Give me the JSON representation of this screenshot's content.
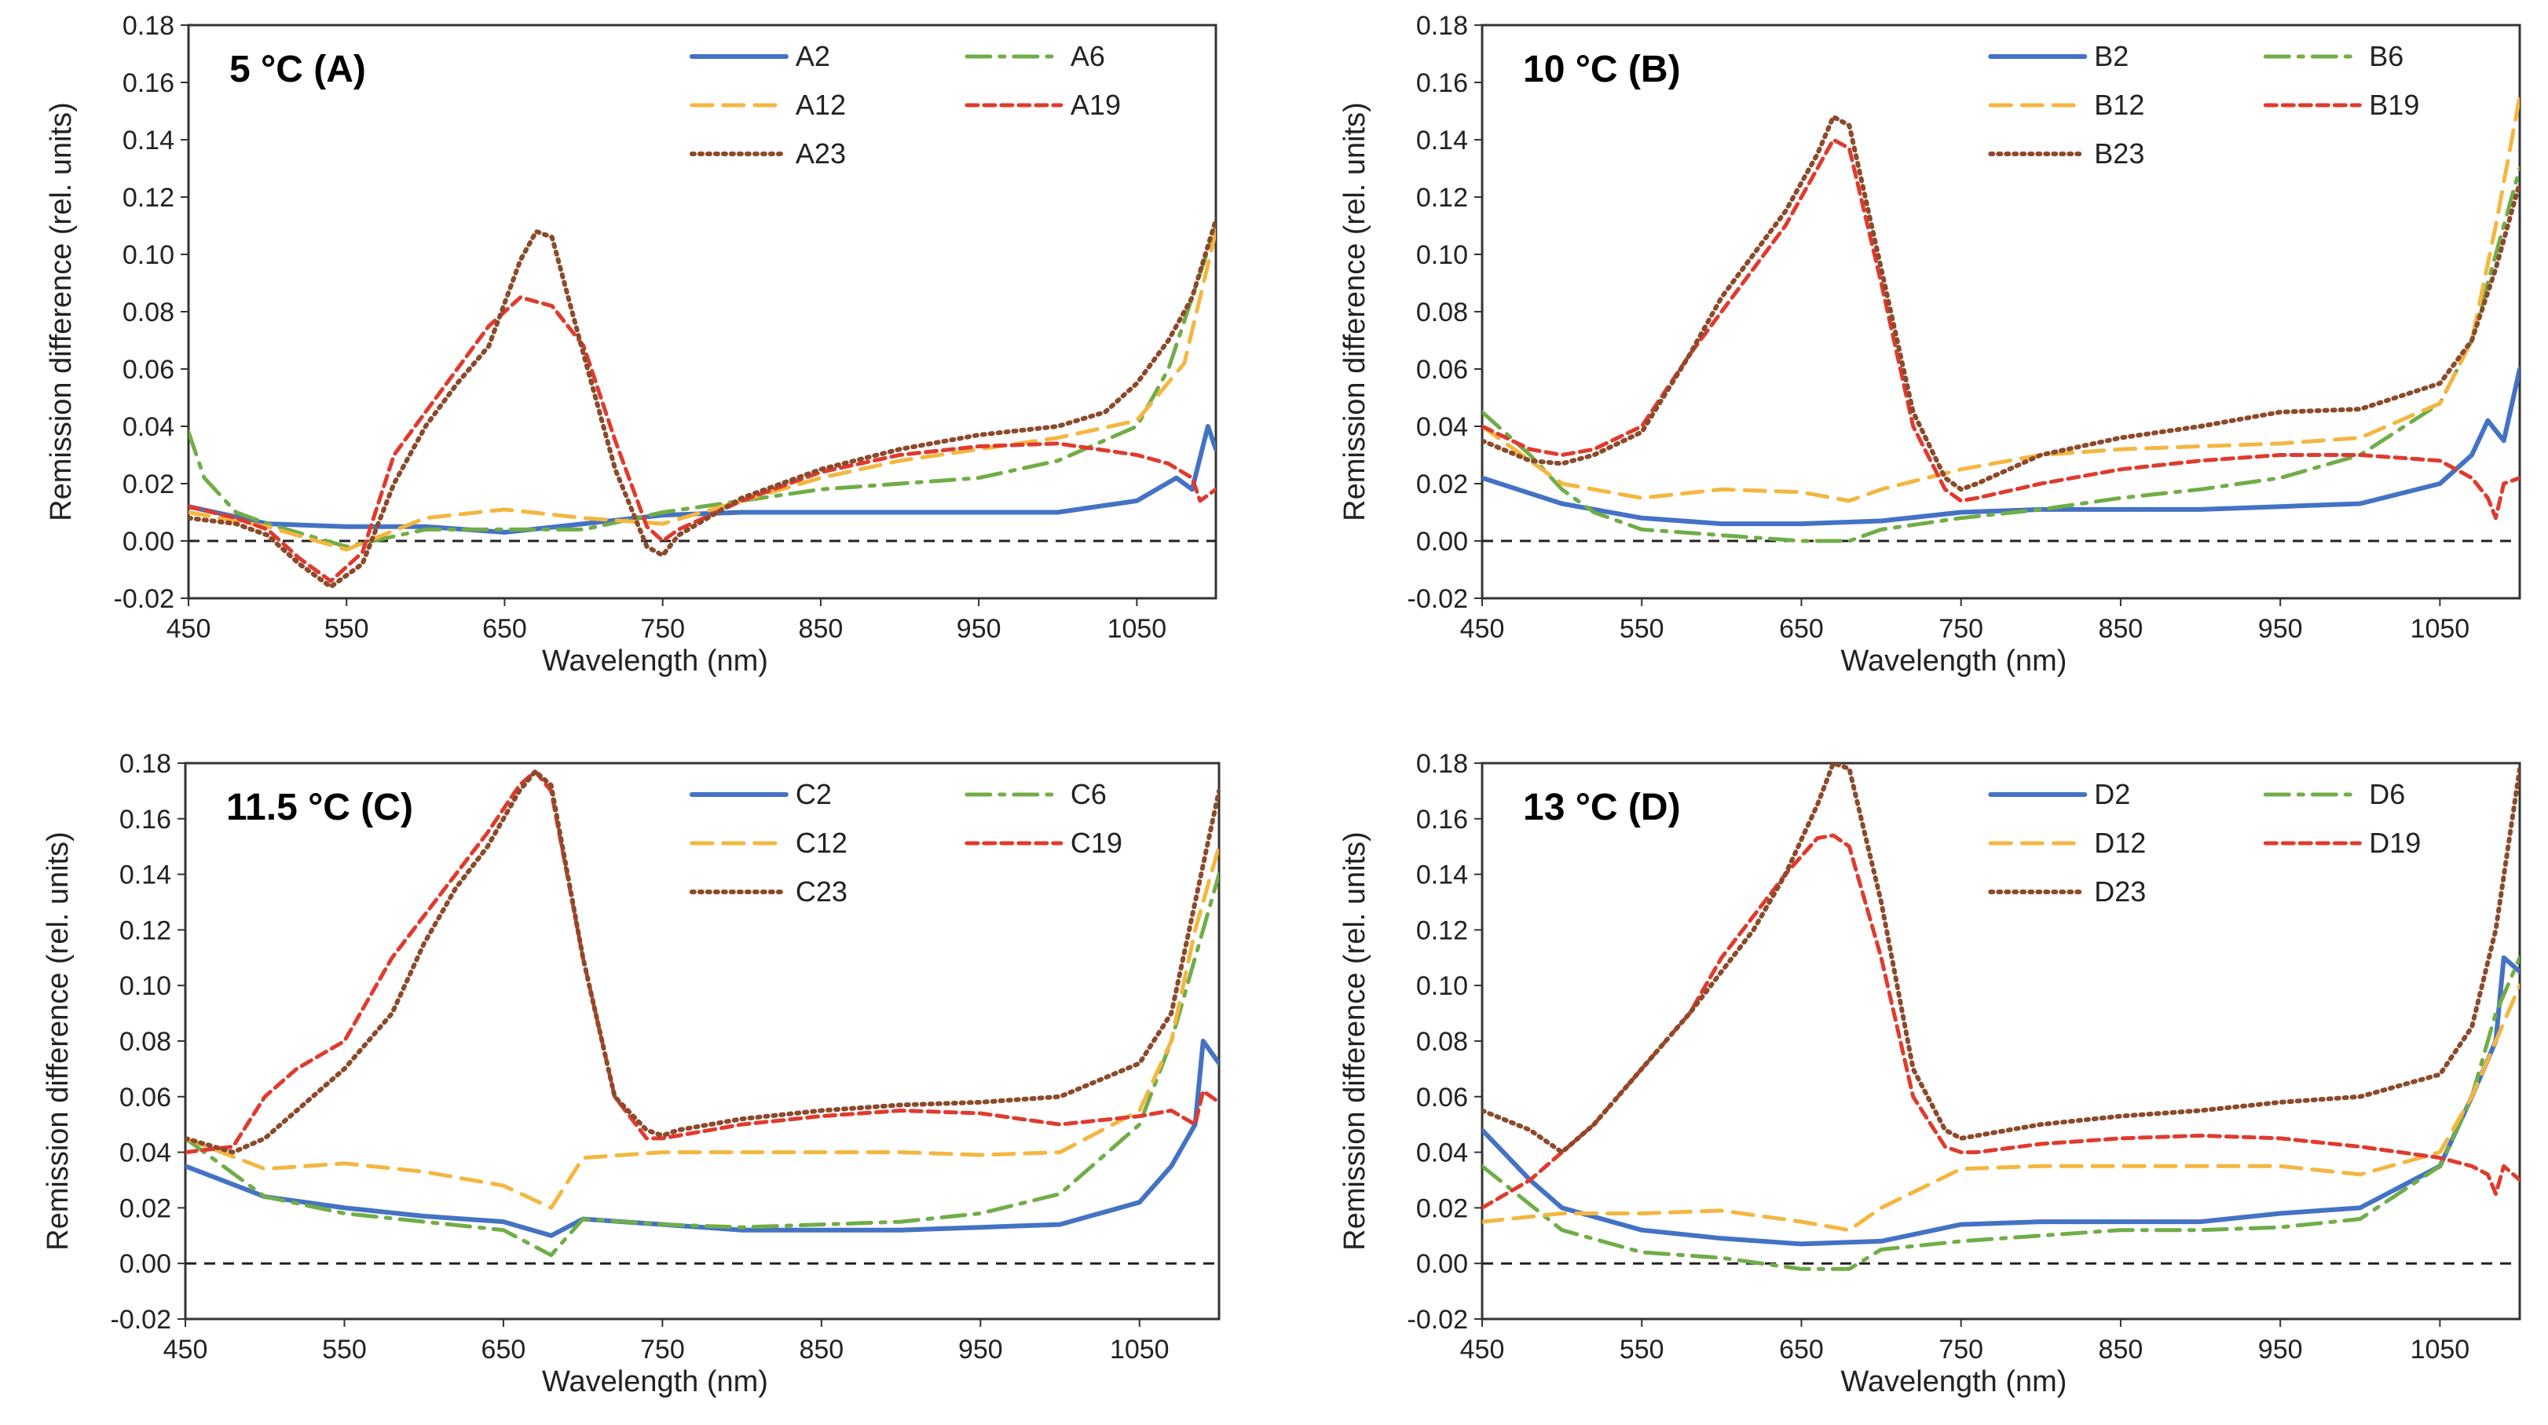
{
  "figure": {
    "description_free": true
  },
  "chart_data": [
    {
      "type": "line",
      "title": "5 °C (A)",
      "xlabel": "Wavelength  (nm)",
      "ylabel": "Remission difference (rel. units)",
      "xlim": [
        450,
        1100
      ],
      "ylim": [
        -0.02,
        0.18
      ],
      "xticks": [
        "450",
        "550",
        "650",
        "750",
        "850",
        "950",
        "1050"
      ],
      "yticks": [
        "-0.02",
        "0.00",
        "0.02",
        "0.04",
        "0.06",
        "0.08",
        "0.10",
        "0.12",
        "0.14",
        "0.16",
        "0.18"
      ],
      "series": [
        {
          "name": "A2",
          "x": [
            450,
            500,
            550,
            600,
            650,
            700,
            750,
            800,
            850,
            900,
            950,
            1000,
            1050,
            1075,
            1085,
            1095,
            1100
          ],
          "y": [
            0.012,
            0.006,
            0.005,
            0.005,
            0.003,
            0.006,
            0.009,
            0.01,
            0.01,
            0.01,
            0.01,
            0.01,
            0.014,
            0.022,
            0.018,
            0.04,
            0.032
          ]
        },
        {
          "name": "A6",
          "x": [
            450,
            460,
            480,
            500,
            550,
            600,
            650,
            700,
            750,
            800,
            850,
            900,
            950,
            1000,
            1050,
            1070,
            1085,
            1100
          ],
          "y": [
            0.038,
            0.022,
            0.01,
            0.006,
            -0.002,
            0.004,
            0.004,
            0.004,
            0.01,
            0.014,
            0.018,
            0.02,
            0.022,
            0.028,
            0.04,
            0.06,
            0.085,
            0.11
          ]
        },
        {
          "name": "A12",
          "x": [
            450,
            500,
            550,
            600,
            650,
            700,
            750,
            800,
            850,
            900,
            950,
            1000,
            1050,
            1080,
            1100
          ],
          "y": [
            0.01,
            0.005,
            -0.003,
            0.008,
            0.011,
            0.008,
            0.006,
            0.014,
            0.022,
            0.028,
            0.032,
            0.036,
            0.042,
            0.062,
            0.108
          ]
        },
        {
          "name": "A19",
          "x": [
            450,
            480,
            500,
            520,
            540,
            560,
            580,
            600,
            620,
            640,
            660,
            680,
            700,
            720,
            740,
            750,
            760,
            800,
            850,
            900,
            950,
            1000,
            1050,
            1070,
            1085,
            1090,
            1100
          ],
          "y": [
            0.012,
            0.008,
            0.004,
            -0.006,
            -0.014,
            -0.004,
            0.03,
            0.045,
            0.06,
            0.075,
            0.085,
            0.082,
            0.068,
            0.035,
            0.005,
            0.0,
            0.004,
            0.014,
            0.024,
            0.03,
            0.033,
            0.034,
            0.03,
            0.027,
            0.022,
            0.014,
            0.018
          ]
        },
        {
          "name": "A23",
          "x": [
            450,
            480,
            500,
            520,
            540,
            560,
            580,
            600,
            620,
            640,
            660,
            670,
            680,
            700,
            720,
            740,
            750,
            760,
            800,
            850,
            900,
            950,
            1000,
            1030,
            1050,
            1070,
            1085,
            1100
          ],
          "y": [
            0.008,
            0.006,
            0.002,
            -0.008,
            -0.016,
            -0.008,
            0.02,
            0.04,
            0.055,
            0.068,
            0.098,
            0.108,
            0.106,
            0.065,
            0.025,
            -0.002,
            -0.005,
            0.002,
            0.015,
            0.025,
            0.032,
            0.037,
            0.04,
            0.045,
            0.055,
            0.07,
            0.085,
            0.112
          ]
        }
      ]
    },
    {
      "type": "line",
      "title": "10 °C (B)",
      "xlabel": "Wavelength  (nm)",
      "ylabel": "Remission difference (rel. units)",
      "xlim": [
        450,
        1100
      ],
      "ylim": [
        -0.02,
        0.18
      ],
      "xticks": [
        "450",
        "550",
        "650",
        "750",
        "850",
        "950",
        "1050"
      ],
      "yticks": [
        "-0.02",
        "0.00",
        "0.02",
        "0.04",
        "0.06",
        "0.08",
        "0.10",
        "0.12",
        "0.14",
        "0.16",
        "0.18"
      ],
      "series": [
        {
          "name": "B2",
          "x": [
            450,
            500,
            550,
            600,
            650,
            700,
            750,
            800,
            850,
            900,
            950,
            1000,
            1050,
            1070,
            1080,
            1090,
            1100
          ],
          "y": [
            0.022,
            0.013,
            0.008,
            0.006,
            0.006,
            0.007,
            0.01,
            0.011,
            0.011,
            0.011,
            0.012,
            0.013,
            0.02,
            0.03,
            0.042,
            0.035,
            0.06
          ]
        },
        {
          "name": "B6",
          "x": [
            450,
            480,
            500,
            520,
            550,
            600,
            650,
            680,
            700,
            750,
            800,
            850,
            900,
            950,
            1000,
            1050,
            1070,
            1085,
            1100
          ],
          "y": [
            0.045,
            0.03,
            0.018,
            0.01,
            0.004,
            0.002,
            0.0,
            0.0,
            0.004,
            0.008,
            0.011,
            0.015,
            0.018,
            0.022,
            0.03,
            0.048,
            0.07,
            0.1,
            0.13
          ]
        },
        {
          "name": "B12",
          "x": [
            450,
            500,
            550,
            600,
            650,
            680,
            700,
            750,
            800,
            850,
            900,
            950,
            1000,
            1050,
            1070,
            1085,
            1100
          ],
          "y": [
            0.04,
            0.02,
            0.015,
            0.018,
            0.017,
            0.014,
            0.018,
            0.025,
            0.03,
            0.032,
            0.033,
            0.034,
            0.036,
            0.048,
            0.07,
            0.11,
            0.155
          ]
        },
        {
          "name": "B19",
          "x": [
            450,
            480,
            500,
            520,
            550,
            580,
            600,
            620,
            640,
            660,
            670,
            680,
            700,
            720,
            740,
            750,
            760,
            800,
            850,
            900,
            950,
            1000,
            1050,
            1070,
            1080,
            1085,
            1090,
            1100
          ],
          "y": [
            0.04,
            0.032,
            0.03,
            0.032,
            0.04,
            0.065,
            0.08,
            0.095,
            0.11,
            0.13,
            0.14,
            0.137,
            0.09,
            0.04,
            0.018,
            0.014,
            0.015,
            0.02,
            0.025,
            0.028,
            0.03,
            0.03,
            0.028,
            0.022,
            0.015,
            0.008,
            0.02,
            0.022
          ]
        },
        {
          "name": "B23",
          "x": [
            450,
            480,
            500,
            520,
            550,
            580,
            600,
            620,
            640,
            660,
            670,
            680,
            700,
            720,
            740,
            750,
            760,
            800,
            850,
            900,
            950,
            1000,
            1050,
            1070,
            1085,
            1100
          ],
          "y": [
            0.035,
            0.028,
            0.027,
            0.03,
            0.038,
            0.065,
            0.085,
            0.1,
            0.115,
            0.135,
            0.148,
            0.145,
            0.095,
            0.045,
            0.022,
            0.018,
            0.02,
            0.03,
            0.036,
            0.04,
            0.045,
            0.046,
            0.055,
            0.07,
            0.095,
            0.125
          ]
        }
      ]
    },
    {
      "type": "line",
      "title": "11.5 °C (C)",
      "xlabel": "Wavelength  (nm)",
      "ylabel": "Remission difference (rel. units)",
      "xlim": [
        450,
        1100
      ],
      "ylim": [
        -0.02,
        0.18
      ],
      "xticks": [
        "450",
        "550",
        "650",
        "750",
        "850",
        "950",
        "1050"
      ],
      "yticks": [
        "-0.02",
        "0.00",
        "0.02",
        "0.04",
        "0.06",
        "0.08",
        "0.10",
        "0.12",
        "0.14",
        "0.16",
        "0.18"
      ],
      "series": [
        {
          "name": "C2",
          "x": [
            450,
            500,
            550,
            600,
            650,
            680,
            700,
            750,
            800,
            850,
            900,
            950,
            1000,
            1050,
            1070,
            1085,
            1090,
            1100
          ],
          "y": [
            0.035,
            0.024,
            0.02,
            0.017,
            0.015,
            0.01,
            0.016,
            0.014,
            0.012,
            0.012,
            0.012,
            0.013,
            0.014,
            0.022,
            0.035,
            0.05,
            0.08,
            0.072
          ]
        },
        {
          "name": "C6",
          "x": [
            450,
            500,
            550,
            600,
            650,
            670,
            680,
            700,
            750,
            800,
            850,
            900,
            950,
            1000,
            1050,
            1070,
            1085,
            1100
          ],
          "y": [
            0.045,
            0.024,
            0.018,
            0.015,
            0.012,
            0.006,
            0.003,
            0.016,
            0.014,
            0.013,
            0.014,
            0.015,
            0.018,
            0.025,
            0.05,
            0.08,
            0.11,
            0.14
          ]
        },
        {
          "name": "C12",
          "x": [
            450,
            500,
            550,
            600,
            650,
            680,
            700,
            750,
            800,
            850,
            900,
            950,
            1000,
            1050,
            1070,
            1085,
            1100
          ],
          "y": [
            0.045,
            0.034,
            0.036,
            0.033,
            0.028,
            0.02,
            0.038,
            0.04,
            0.04,
            0.04,
            0.04,
            0.039,
            0.04,
            0.055,
            0.08,
            0.12,
            0.15
          ]
        },
        {
          "name": "C19",
          "x": [
            450,
            480,
            500,
            520,
            550,
            580,
            600,
            620,
            640,
            660,
            670,
            680,
            700,
            720,
            740,
            750,
            760,
            800,
            850,
            900,
            950,
            1000,
            1050,
            1070,
            1085,
            1090,
            1100
          ],
          "y": [
            0.04,
            0.042,
            0.06,
            0.07,
            0.08,
            0.11,
            0.125,
            0.14,
            0.155,
            0.172,
            0.177,
            0.17,
            0.11,
            0.06,
            0.045,
            0.045,
            0.046,
            0.05,
            0.053,
            0.055,
            0.054,
            0.05,
            0.053,
            0.055,
            0.05,
            0.062,
            0.058
          ]
        },
        {
          "name": "C23",
          "x": [
            450,
            480,
            500,
            520,
            550,
            580,
            600,
            620,
            640,
            660,
            670,
            680,
            700,
            720,
            740,
            750,
            760,
            800,
            850,
            900,
            950,
            1000,
            1050,
            1070,
            1085,
            1100
          ],
          "y": [
            0.045,
            0.04,
            0.045,
            0.055,
            0.07,
            0.09,
            0.115,
            0.135,
            0.15,
            0.17,
            0.177,
            0.172,
            0.11,
            0.06,
            0.048,
            0.046,
            0.048,
            0.052,
            0.055,
            0.057,
            0.058,
            0.06,
            0.072,
            0.09,
            0.13,
            0.17
          ]
        }
      ]
    },
    {
      "type": "line",
      "title": "13 °C (D)",
      "xlabel": "Wavelength  (nm)",
      "ylabel": "Remission difference (rel. units)",
      "xlim": [
        450,
        1100
      ],
      "ylim": [
        -0.02,
        0.18
      ],
      "xticks": [
        "450",
        "550",
        "650",
        "750",
        "850",
        "950",
        "1050"
      ],
      "yticks": [
        "-0.02",
        "0.00",
        "0.02",
        "0.04",
        "0.06",
        "0.08",
        "0.10",
        "0.12",
        "0.14",
        "0.16",
        "0.18"
      ],
      "series": [
        {
          "name": "D2",
          "x": [
            450,
            480,
            500,
            550,
            600,
            650,
            700,
            750,
            800,
            850,
            900,
            950,
            1000,
            1050,
            1070,
            1085,
            1090,
            1100
          ],
          "y": [
            0.048,
            0.03,
            0.02,
            0.012,
            0.009,
            0.007,
            0.008,
            0.014,
            0.015,
            0.015,
            0.015,
            0.018,
            0.02,
            0.035,
            0.06,
            0.08,
            0.11,
            0.105
          ]
        },
        {
          "name": "D6",
          "x": [
            450,
            500,
            550,
            600,
            650,
            680,
            700,
            750,
            800,
            850,
            900,
            950,
            1000,
            1050,
            1070,
            1085,
            1100
          ],
          "y": [
            0.035,
            0.012,
            0.004,
            0.002,
            -0.002,
            -0.002,
            0.005,
            0.008,
            0.01,
            0.012,
            0.012,
            0.013,
            0.016,
            0.035,
            0.06,
            0.09,
            0.11
          ]
        },
        {
          "name": "D12",
          "x": [
            450,
            500,
            550,
            600,
            650,
            680,
            700,
            750,
            800,
            850,
            900,
            950,
            1000,
            1050,
            1070,
            1085,
            1100
          ],
          "y": [
            0.015,
            0.018,
            0.018,
            0.019,
            0.015,
            0.012,
            0.02,
            0.034,
            0.035,
            0.035,
            0.035,
            0.035,
            0.032,
            0.04,
            0.06,
            0.08,
            0.1
          ]
        },
        {
          "name": "D19",
          "x": [
            450,
            480,
            500,
            520,
            550,
            580,
            600,
            620,
            640,
            660,
            670,
            680,
            700,
            720,
            740,
            750,
            760,
            800,
            850,
            900,
            950,
            1000,
            1050,
            1070,
            1080,
            1085,
            1090,
            1100
          ],
          "y": [
            0.02,
            0.03,
            0.04,
            0.05,
            0.07,
            0.09,
            0.11,
            0.125,
            0.14,
            0.153,
            0.154,
            0.15,
            0.11,
            0.06,
            0.042,
            0.04,
            0.04,
            0.043,
            0.045,
            0.046,
            0.045,
            0.042,
            0.038,
            0.035,
            0.032,
            0.025,
            0.035,
            0.03
          ]
        },
        {
          "name": "D23",
          "x": [
            450,
            480,
            500,
            520,
            550,
            580,
            600,
            620,
            640,
            660,
            670,
            680,
            700,
            720,
            740,
            750,
            760,
            800,
            850,
            900,
            950,
            1000,
            1050,
            1070,
            1085,
            1100
          ],
          "y": [
            0.055,
            0.048,
            0.04,
            0.05,
            0.07,
            0.09,
            0.105,
            0.12,
            0.14,
            0.165,
            0.18,
            0.178,
            0.13,
            0.07,
            0.048,
            0.045,
            0.046,
            0.05,
            0.053,
            0.055,
            0.058,
            0.06,
            0.068,
            0.085,
            0.12,
            0.178
          ]
        }
      ]
    }
  ]
}
